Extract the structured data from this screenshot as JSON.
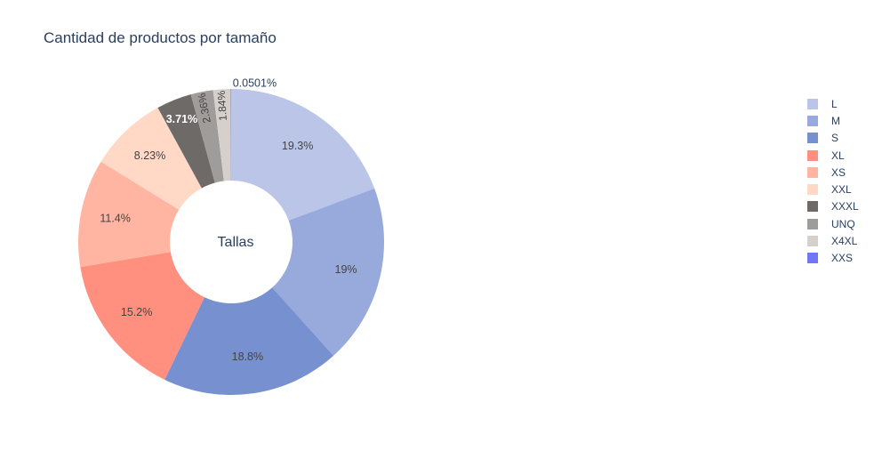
{
  "chart_data": {
    "type": "pie",
    "title": "Cantidad de productos por tamaño",
    "center_label": "Tallas",
    "hole": true,
    "legend_position": "right",
    "slices": [
      {
        "label": "L",
        "value": 19.3,
        "text": "19.3%",
        "color": "#bac5e7"
      },
      {
        "label": "M",
        "value": 19.0,
        "text": "19%",
        "color": "#98aadb"
      },
      {
        "label": "S",
        "value": 18.8,
        "text": "18.8%",
        "color": "#7690d0"
      },
      {
        "label": "XL",
        "value": 15.2,
        "text": "15.2%",
        "color": "#ff9080"
      },
      {
        "label": "XS",
        "value": 11.4,
        "text": "11.4%",
        "color": "#ffb5a1"
      },
      {
        "label": "XXL",
        "value": 8.23,
        "text": "8.23%",
        "color": "#ffd8c6"
      },
      {
        "label": "XXXL",
        "value": 3.71,
        "text": "3.71%",
        "color": "#6e6a67"
      },
      {
        "label": "UNQ",
        "value": 2.36,
        "text": "2.36%",
        "color": "#a09c99"
      },
      {
        "label": "X4XL",
        "value": 1.84,
        "text": "1.84%",
        "color": "#d5d0cc"
      },
      {
        "label": "XXS",
        "value": 0.0501,
        "text": "0.0501%",
        "color": "#6f77f5"
      }
    ]
  }
}
